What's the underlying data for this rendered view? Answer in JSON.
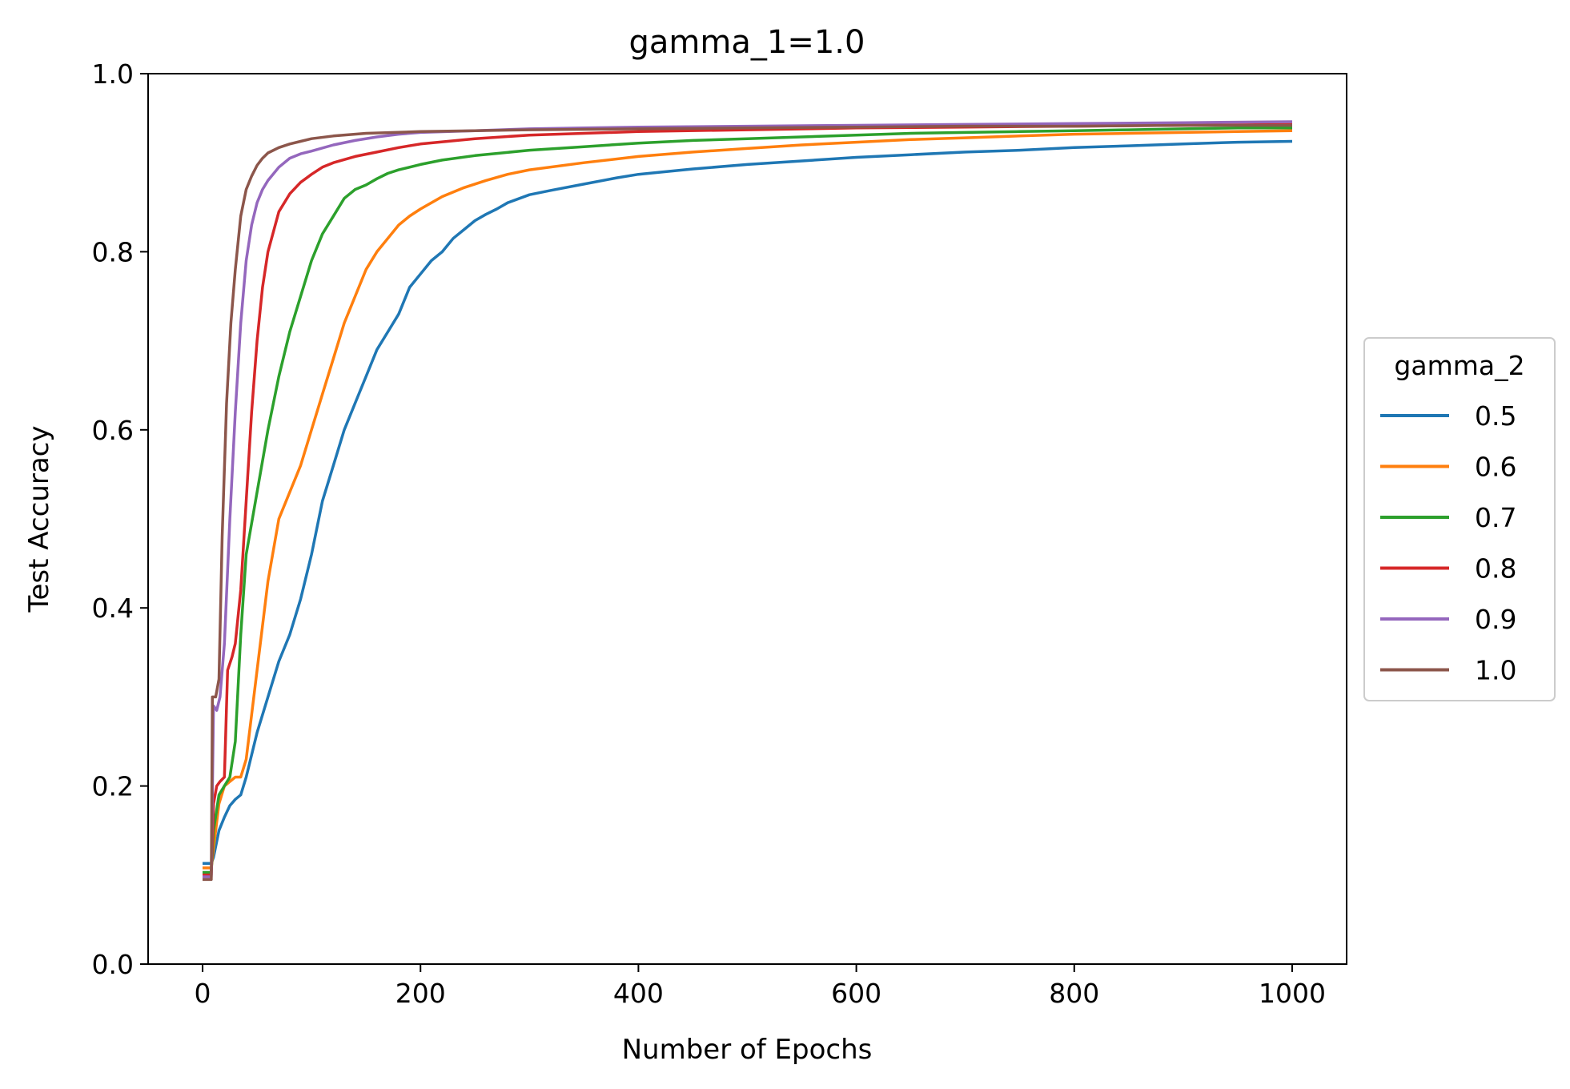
{
  "chart_data": {
    "type": "line",
    "title": "gamma_1=1.0",
    "xlabel": "Number of Epochs",
    "ylabel": "Test Accuracy",
    "xlim": [
      -50,
      1050
    ],
    "ylim": [
      0.0,
      1.0
    ],
    "xticks": [
      0,
      200,
      400,
      600,
      800,
      1000
    ],
    "xtick_labels": [
      "0",
      "200",
      "400",
      "600",
      "800",
      "1000"
    ],
    "yticks": [
      0.0,
      0.2,
      0.4,
      0.6,
      0.8,
      1.0
    ],
    "ytick_labels": [
      "0.0",
      "0.2",
      "0.4",
      "0.6",
      "0.8",
      "1.0"
    ],
    "grid": false,
    "legend": {
      "title": "gamma_2",
      "placement": "outside-right"
    },
    "series": [
      {
        "name": "0.5",
        "color": "#1f77b4",
        "points": [
          [
            0,
            0.113
          ],
          [
            8,
            0.113
          ],
          [
            10,
            0.12
          ],
          [
            15,
            0.15
          ],
          [
            20,
            0.165
          ],
          [
            25,
            0.178
          ],
          [
            30,
            0.185
          ],
          [
            35,
            0.19
          ],
          [
            40,
            0.21
          ],
          [
            50,
            0.26
          ],
          [
            60,
            0.3
          ],
          [
            70,
            0.34
          ],
          [
            80,
            0.37
          ],
          [
            90,
            0.41
          ],
          [
            100,
            0.46
          ],
          [
            110,
            0.52
          ],
          [
            120,
            0.56
          ],
          [
            130,
            0.6
          ],
          [
            140,
            0.63
          ],
          [
            150,
            0.66
          ],
          [
            160,
            0.69
          ],
          [
            170,
            0.71
          ],
          [
            180,
            0.73
          ],
          [
            190,
            0.76
          ],
          [
            200,
            0.775
          ],
          [
            210,
            0.79
          ],
          [
            220,
            0.8
          ],
          [
            230,
            0.815
          ],
          [
            240,
            0.825
          ],
          [
            250,
            0.835
          ],
          [
            260,
            0.842
          ],
          [
            270,
            0.848
          ],
          [
            280,
            0.855
          ],
          [
            300,
            0.864
          ],
          [
            320,
            0.869
          ],
          [
            350,
            0.876
          ],
          [
            380,
            0.883
          ],
          [
            400,
            0.887
          ],
          [
            450,
            0.893
          ],
          [
            500,
            0.898
          ],
          [
            550,
            0.902
          ],
          [
            600,
            0.906
          ],
          [
            650,
            0.909
          ],
          [
            700,
            0.912
          ],
          [
            750,
            0.914
          ],
          [
            800,
            0.917
          ],
          [
            850,
            0.919
          ],
          [
            900,
            0.921
          ],
          [
            950,
            0.923
          ],
          [
            1000,
            0.924
          ]
        ]
      },
      {
        "name": "0.6",
        "color": "#ff7f0e",
        "points": [
          [
            0,
            0.108
          ],
          [
            8,
            0.108
          ],
          [
            10,
            0.13
          ],
          [
            15,
            0.18
          ],
          [
            20,
            0.2
          ],
          [
            25,
            0.205
          ],
          [
            30,
            0.21
          ],
          [
            35,
            0.21
          ],
          [
            40,
            0.23
          ],
          [
            50,
            0.33
          ],
          [
            60,
            0.43
          ],
          [
            70,
            0.5
          ],
          [
            80,
            0.53
          ],
          [
            90,
            0.56
          ],
          [
            100,
            0.6
          ],
          [
            110,
            0.64
          ],
          [
            120,
            0.68
          ],
          [
            130,
            0.72
          ],
          [
            140,
            0.75
          ],
          [
            150,
            0.78
          ],
          [
            160,
            0.8
          ],
          [
            170,
            0.815
          ],
          [
            180,
            0.83
          ],
          [
            190,
            0.84
          ],
          [
            200,
            0.848
          ],
          [
            220,
            0.862
          ],
          [
            240,
            0.872
          ],
          [
            260,
            0.88
          ],
          [
            280,
            0.887
          ],
          [
            300,
            0.892
          ],
          [
            350,
            0.9
          ],
          [
            400,
            0.907
          ],
          [
            450,
            0.912
          ],
          [
            500,
            0.916
          ],
          [
            550,
            0.92
          ],
          [
            600,
            0.923
          ],
          [
            650,
            0.926
          ],
          [
            700,
            0.928
          ],
          [
            750,
            0.93
          ],
          [
            800,
            0.932
          ],
          [
            850,
            0.933
          ],
          [
            900,
            0.934
          ],
          [
            950,
            0.935
          ],
          [
            1000,
            0.936
          ]
        ]
      },
      {
        "name": "0.7",
        "color": "#2ca02c",
        "points": [
          [
            0,
            0.103
          ],
          [
            8,
            0.103
          ],
          [
            10,
            0.15
          ],
          [
            15,
            0.19
          ],
          [
            20,
            0.2
          ],
          [
            25,
            0.21
          ],
          [
            30,
            0.25
          ],
          [
            35,
            0.37
          ],
          [
            40,
            0.46
          ],
          [
            50,
            0.53
          ],
          [
            60,
            0.6
          ],
          [
            70,
            0.66
          ],
          [
            80,
            0.71
          ],
          [
            90,
            0.75
          ],
          [
            100,
            0.79
          ],
          [
            110,
            0.82
          ],
          [
            120,
            0.84
          ],
          [
            130,
            0.86
          ],
          [
            140,
            0.87
          ],
          [
            150,
            0.875
          ],
          [
            160,
            0.882
          ],
          [
            170,
            0.888
          ],
          [
            180,
            0.892
          ],
          [
            200,
            0.898
          ],
          [
            220,
            0.903
          ],
          [
            250,
            0.908
          ],
          [
            300,
            0.914
          ],
          [
            350,
            0.918
          ],
          [
            400,
            0.922
          ],
          [
            450,
            0.925
          ],
          [
            500,
            0.927
          ],
          [
            550,
            0.929
          ],
          [
            600,
            0.931
          ],
          [
            650,
            0.933
          ],
          [
            700,
            0.934
          ],
          [
            750,
            0.935
          ],
          [
            800,
            0.936
          ],
          [
            850,
            0.937
          ],
          [
            900,
            0.938
          ],
          [
            950,
            0.939
          ],
          [
            1000,
            0.939
          ]
        ]
      },
      {
        "name": "0.8",
        "color": "#d62728",
        "points": [
          [
            0,
            0.1
          ],
          [
            8,
            0.1
          ],
          [
            10,
            0.18
          ],
          [
            13,
            0.2
          ],
          [
            16,
            0.205
          ],
          [
            20,
            0.21
          ],
          [
            23,
            0.33
          ],
          [
            27,
            0.345
          ],
          [
            30,
            0.36
          ],
          [
            35,
            0.42
          ],
          [
            40,
            0.52
          ],
          [
            45,
            0.62
          ],
          [
            50,
            0.7
          ],
          [
            55,
            0.76
          ],
          [
            60,
            0.8
          ],
          [
            70,
            0.845
          ],
          [
            80,
            0.865
          ],
          [
            90,
            0.878
          ],
          [
            100,
            0.887
          ],
          [
            110,
            0.895
          ],
          [
            120,
            0.9
          ],
          [
            140,
            0.907
          ],
          [
            160,
            0.912
          ],
          [
            180,
            0.917
          ],
          [
            200,
            0.921
          ],
          [
            250,
            0.927
          ],
          [
            300,
            0.931
          ],
          [
            350,
            0.933
          ],
          [
            400,
            0.935
          ],
          [
            500,
            0.937
          ],
          [
            600,
            0.939
          ],
          [
            700,
            0.94
          ],
          [
            800,
            0.941
          ],
          [
            900,
            0.942
          ],
          [
            1000,
            0.943
          ]
        ]
      },
      {
        "name": "0.9",
        "color": "#9467bd",
        "points": [
          [
            0,
            0.098
          ],
          [
            8,
            0.098
          ],
          [
            10,
            0.29
          ],
          [
            13,
            0.285
          ],
          [
            16,
            0.3
          ],
          [
            20,
            0.36
          ],
          [
            25,
            0.5
          ],
          [
            30,
            0.62
          ],
          [
            35,
            0.72
          ],
          [
            40,
            0.79
          ],
          [
            45,
            0.83
          ],
          [
            50,
            0.855
          ],
          [
            55,
            0.87
          ],
          [
            60,
            0.88
          ],
          [
            70,
            0.895
          ],
          [
            80,
            0.905
          ],
          [
            90,
            0.91
          ],
          [
            100,
            0.913
          ],
          [
            120,
            0.92
          ],
          [
            140,
            0.925
          ],
          [
            160,
            0.929
          ],
          [
            180,
            0.932
          ],
          [
            200,
            0.934
          ],
          [
            250,
            0.936
          ],
          [
            300,
            0.938
          ],
          [
            350,
            0.939
          ],
          [
            400,
            0.94
          ],
          [
            500,
            0.941
          ],
          [
            600,
            0.942
          ],
          [
            700,
            0.943
          ],
          [
            800,
            0.944
          ],
          [
            900,
            0.945
          ],
          [
            1000,
            0.946
          ]
        ]
      },
      {
        "name": "1.0",
        "color": "#8c564b",
        "points": [
          [
            0,
            0.095
          ],
          [
            8,
            0.095
          ],
          [
            9,
            0.3
          ],
          [
            12,
            0.3
          ],
          [
            15,
            0.32
          ],
          [
            18,
            0.48
          ],
          [
            22,
            0.63
          ],
          [
            26,
            0.72
          ],
          [
            30,
            0.78
          ],
          [
            35,
            0.84
          ],
          [
            40,
            0.87
          ],
          [
            45,
            0.885
          ],
          [
            50,
            0.897
          ],
          [
            55,
            0.905
          ],
          [
            60,
            0.911
          ],
          [
            70,
            0.917
          ],
          [
            80,
            0.921
          ],
          [
            90,
            0.924
          ],
          [
            100,
            0.927
          ],
          [
            120,
            0.93
          ],
          [
            150,
            0.933
          ],
          [
            200,
            0.935
          ],
          [
            250,
            0.936
          ],
          [
            300,
            0.937
          ],
          [
            400,
            0.938
          ],
          [
            500,
            0.939
          ],
          [
            600,
            0.94
          ],
          [
            700,
            0.941
          ],
          [
            800,
            0.941
          ],
          [
            900,
            0.942
          ],
          [
            1000,
            0.942
          ]
        ]
      }
    ]
  }
}
